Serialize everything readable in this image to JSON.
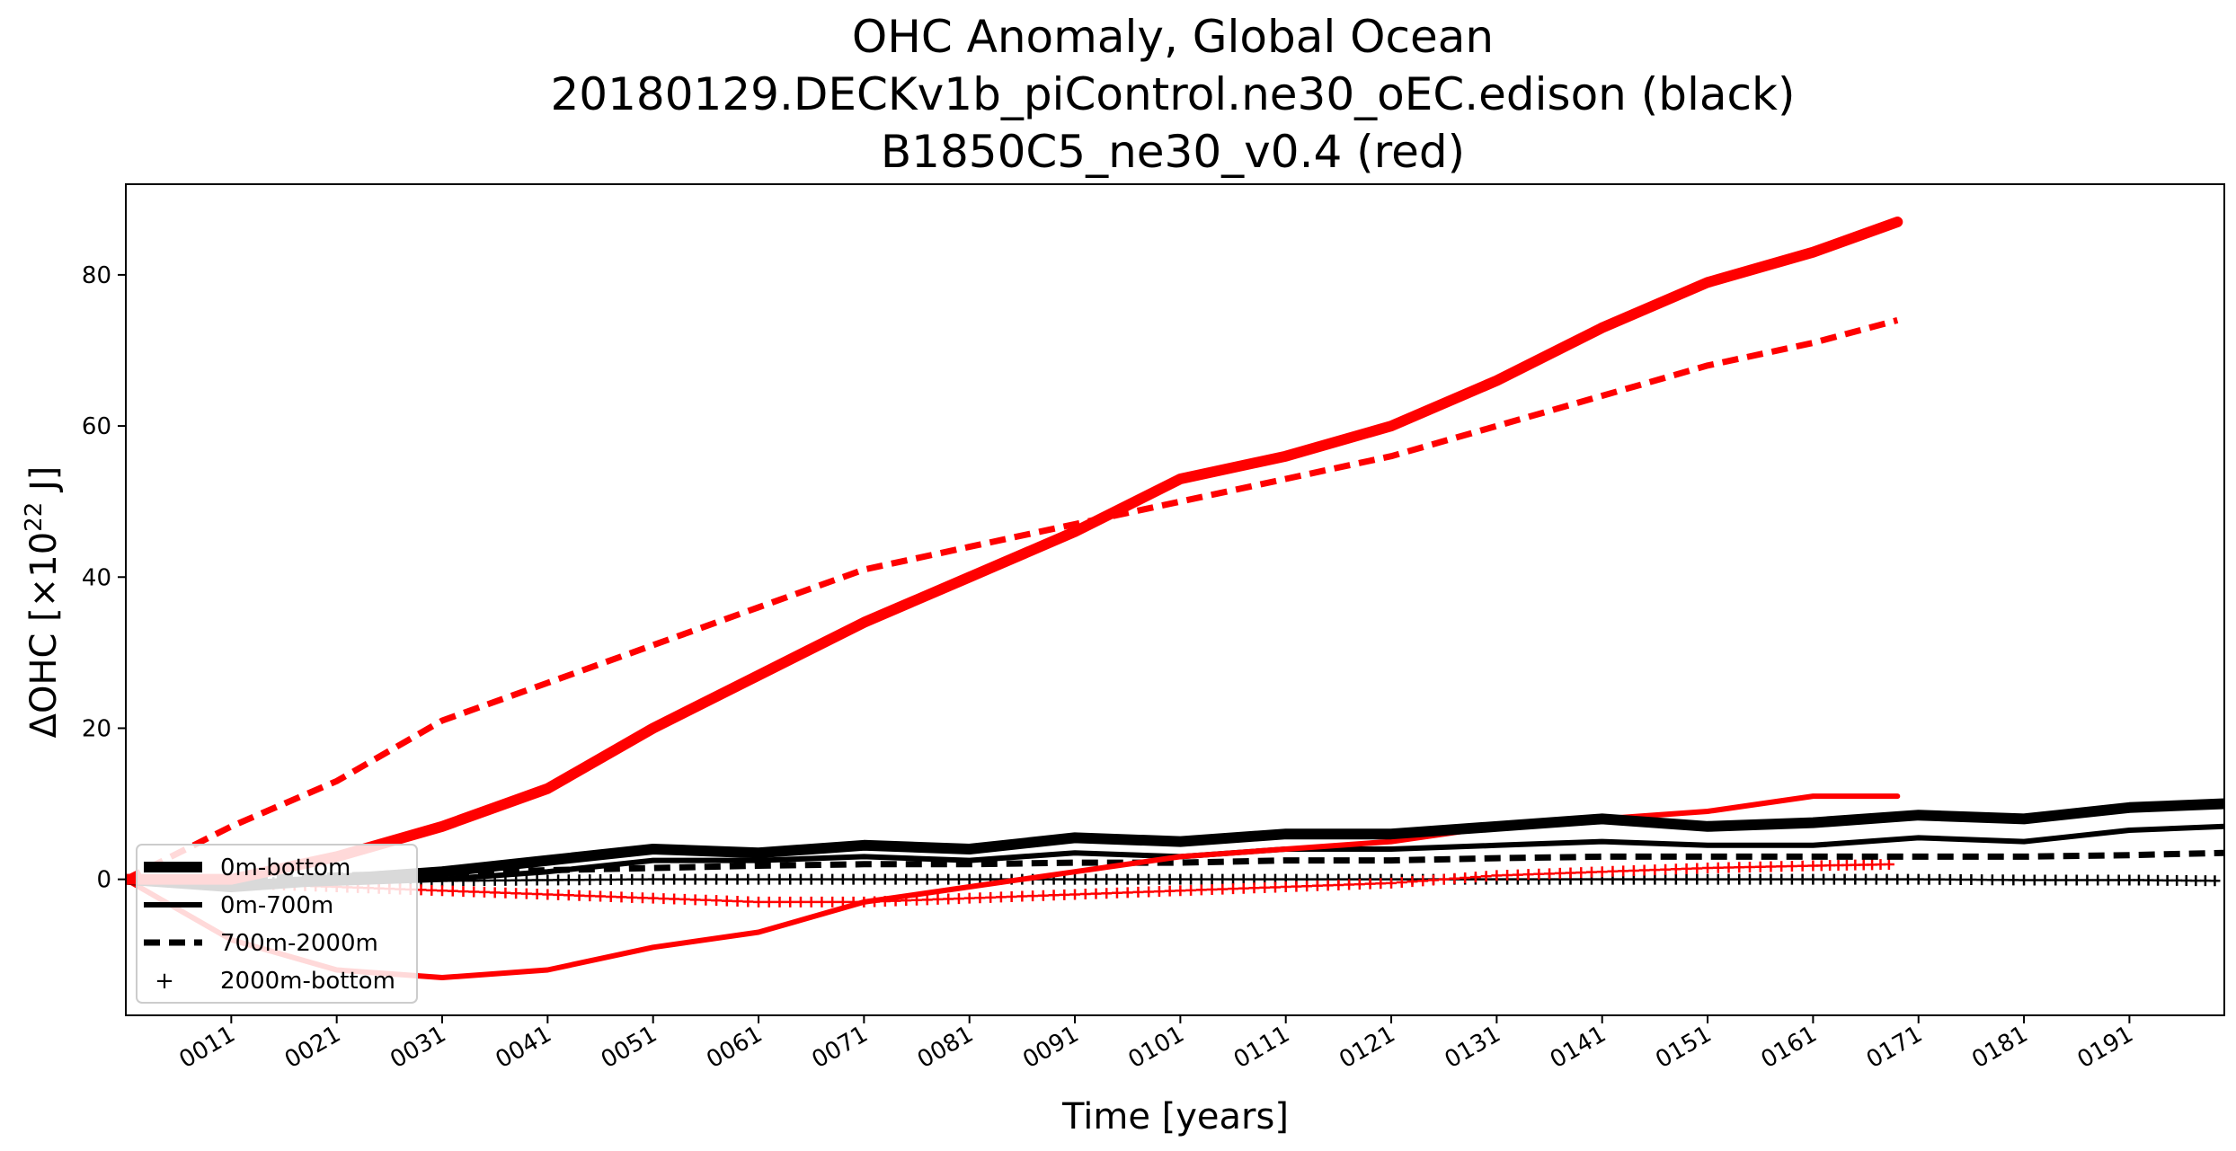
{
  "chart_data": {
    "type": "line",
    "title_lines": [
      "OHC Anomaly, Global Ocean",
      "20180129.DECKv1b_piControl.ne30_oEC.edison (black)",
      "B1850C5_ne30_v0.4 (red)"
    ],
    "xlabel": "Time [years]",
    "ylabel_main": "ΔOHC [×10",
    "ylabel_sup": "22",
    "ylabel_end": " J]",
    "xlim": [
      1,
      200
    ],
    "ylim": [
      -18,
      92
    ],
    "y_ticks": [
      0,
      20,
      40,
      60,
      80
    ],
    "x_ticks": [
      11,
      21,
      31,
      41,
      51,
      61,
      71,
      81,
      91,
      101,
      111,
      121,
      131,
      141,
      151,
      161,
      171,
      181,
      191
    ],
    "x_tick_labels": [
      "0011",
      "0021",
      "0031",
      "0041",
      "0051",
      "0061",
      "0071",
      "0081",
      "0091",
      "0101",
      "0111",
      "0121",
      "0131",
      "0141",
      "0151",
      "0161",
      "0171",
      "0181",
      "0191"
    ],
    "grid": false,
    "legend": {
      "placement": "lower-left",
      "entries": [
        {
          "label": "0m-bottom",
          "style": "thick"
        },
        {
          "label": "0m-700m",
          "style": "solid"
        },
        {
          "label": "700m-2000m",
          "style": "dashed"
        },
        {
          "label": "2000m-bottom",
          "style": "plus"
        }
      ]
    },
    "series": [
      {
        "run": "black",
        "layer": "0m-bottom",
        "color": "#000000",
        "style": "thick",
        "x": [
          1,
          11,
          21,
          31,
          41,
          51,
          61,
          71,
          81,
          91,
          101,
          111,
          121,
          131,
          141,
          151,
          161,
          171,
          181,
          191,
          200
        ],
        "y": [
          0,
          -1,
          0,
          1,
          2.5,
          4,
          3.5,
          4.5,
          4,
          5.5,
          5,
          6,
          6,
          7,
          8,
          7,
          7.5,
          8.5,
          8,
          9.5,
          10
        ]
      },
      {
        "run": "black",
        "layer": "0m-700m",
        "color": "#000000",
        "style": "solid",
        "x": [
          1,
          11,
          21,
          31,
          41,
          51,
          61,
          71,
          81,
          91,
          101,
          111,
          121,
          131,
          141,
          151,
          161,
          171,
          181,
          191,
          200
        ],
        "y": [
          0,
          -1,
          -0.5,
          0,
          1,
          2.5,
          2.5,
          3,
          2.5,
          3.5,
          3,
          4,
          4,
          4.5,
          5,
          4.5,
          4.5,
          5.5,
          5,
          6.5,
          7
        ]
      },
      {
        "run": "black",
        "layer": "700m-2000m",
        "color": "#000000",
        "style": "dashed",
        "x": [
          1,
          11,
          21,
          31,
          41,
          51,
          61,
          71,
          81,
          91,
          101,
          111,
          121,
          131,
          141,
          151,
          161,
          171,
          181,
          191,
          200
        ],
        "y": [
          0,
          0,
          0.5,
          0.8,
          1.2,
          1.5,
          1.8,
          2,
          2,
          2.2,
          2.2,
          2.5,
          2.5,
          2.8,
          3,
          3,
          3,
          3,
          3,
          3.2,
          3.5
        ]
      },
      {
        "run": "black",
        "layer": "2000m-bottom",
        "color": "#000000",
        "style": "plus",
        "x": [
          1,
          11,
          21,
          31,
          41,
          51,
          61,
          71,
          81,
          91,
          101,
          111,
          121,
          131,
          141,
          151,
          161,
          171,
          181,
          191,
          200
        ],
        "y": [
          0,
          -0.5,
          -0.3,
          -0.2,
          -0.1,
          0,
          0,
          0,
          0,
          0,
          0,
          0,
          0,
          0,
          0,
          0,
          0,
          0,
          -0.1,
          -0.1,
          -0.2
        ]
      },
      {
        "run": "red",
        "layer": "0m-bottom",
        "color": "#ff0000",
        "style": "thick",
        "x": [
          1,
          11,
          21,
          31,
          41,
          51,
          61,
          71,
          81,
          91,
          101,
          111,
          121,
          131,
          141,
          151,
          161,
          169
        ],
        "y": [
          0,
          0,
          3,
          7,
          12,
          20,
          27,
          34,
          40,
          46,
          53,
          56,
          60,
          66,
          73,
          79,
          83,
          87
        ]
      },
      {
        "run": "red",
        "layer": "0m-700m",
        "color": "#ff0000",
        "style": "solid",
        "x": [
          1,
          11,
          21,
          31,
          41,
          51,
          61,
          71,
          81,
          91,
          101,
          111,
          121,
          131,
          141,
          151,
          161,
          169
        ],
        "y": [
          0,
          -8,
          -12,
          -13,
          -12,
          -9,
          -7,
          -3,
          -1,
          1,
          3,
          4,
          5,
          7,
          8,
          9,
          11,
          11
        ]
      },
      {
        "run": "red",
        "layer": "700m-2000m",
        "color": "#ff0000",
        "style": "dashed",
        "x": [
          1,
          11,
          21,
          31,
          41,
          51,
          61,
          71,
          81,
          91,
          101,
          111,
          121,
          131,
          141,
          151,
          161,
          169
        ],
        "y": [
          0,
          7,
          13,
          21,
          26,
          31,
          36,
          41,
          44,
          47,
          50,
          53,
          56,
          60,
          64,
          68,
          71,
          74
        ]
      },
      {
        "run": "red",
        "layer": "2000m-bottom",
        "color": "#ff0000",
        "style": "plus",
        "x": [
          1,
          11,
          21,
          31,
          41,
          51,
          61,
          71,
          81,
          91,
          101,
          111,
          121,
          131,
          141,
          151,
          161,
          169
        ],
        "y": [
          0,
          -0.5,
          -1,
          -1.5,
          -2,
          -2.5,
          -3,
          -3,
          -2.5,
          -2,
          -1.5,
          -1,
          -0.5,
          0.5,
          1,
          1.5,
          1.8,
          2
        ]
      }
    ]
  }
}
